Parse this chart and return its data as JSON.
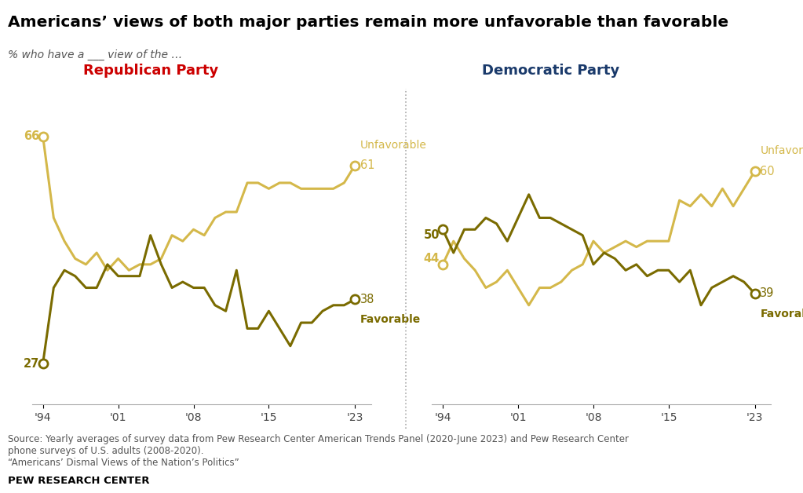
{
  "title": "Americans’ views of both major parties remain more unfavorable than favorable",
  "subtitle": "% who have a ___ view of the …",
  "source_text": "Source: Yearly averages of survey data from Pew Research Center American Trends Panel (2020-June 2023) and Pew Research Center\nphone surveys of U.S. adults (2008-2020).\n“Americans’ Dismal Views of the Nation’s Politics”",
  "footer": "PEW RESEARCH CENTER",
  "rep_title": "Republican Party",
  "dem_title": "Democratic Party",
  "rep_title_color": "#cc0000",
  "dem_title_color": "#1a3a6b",
  "color_unfavorable": "#d4b84a",
  "color_favorable": "#7a6b00",
  "years": [
    1994,
    1995,
    1996,
    1997,
    1998,
    1999,
    2000,
    2001,
    2002,
    2003,
    2004,
    2005,
    2006,
    2007,
    2008,
    2009,
    2010,
    2011,
    2012,
    2013,
    2014,
    2015,
    2016,
    2017,
    2018,
    2019,
    2020,
    2021,
    2022,
    2023
  ],
  "rep_unfavorable": [
    66,
    52,
    48,
    45,
    44,
    46,
    43,
    45,
    43,
    44,
    44,
    45,
    49,
    48,
    50,
    49,
    52,
    53,
    53,
    58,
    58,
    57,
    58,
    58,
    57,
    57,
    57,
    57,
    58,
    61
  ],
  "rep_favorable": [
    27,
    40,
    43,
    42,
    40,
    40,
    44,
    42,
    42,
    42,
    49,
    44,
    40,
    41,
    40,
    40,
    37,
    36,
    43,
    33,
    33,
    36,
    33,
    30,
    34,
    34,
    36,
    37,
    37,
    38
  ],
  "dem_unfavorable": [
    44,
    48,
    45,
    43,
    40,
    41,
    43,
    40,
    37,
    40,
    40,
    41,
    43,
    44,
    48,
    46,
    47,
    48,
    47,
    48,
    48,
    48,
    55,
    54,
    56,
    54,
    57,
    54,
    57,
    60
  ],
  "dem_favorable": [
    50,
    46,
    50,
    50,
    52,
    51,
    48,
    52,
    56,
    52,
    52,
    51,
    50,
    49,
    44,
    46,
    45,
    43,
    44,
    42,
    43,
    43,
    41,
    43,
    37,
    40,
    41,
    42,
    41,
    39
  ],
  "ylim": [
    20,
    75
  ],
  "xticks": [
    1994,
    2001,
    2008,
    2015,
    2023
  ],
  "xticklabels": [
    "'94",
    "'01",
    "'08",
    "'15",
    "'23"
  ]
}
